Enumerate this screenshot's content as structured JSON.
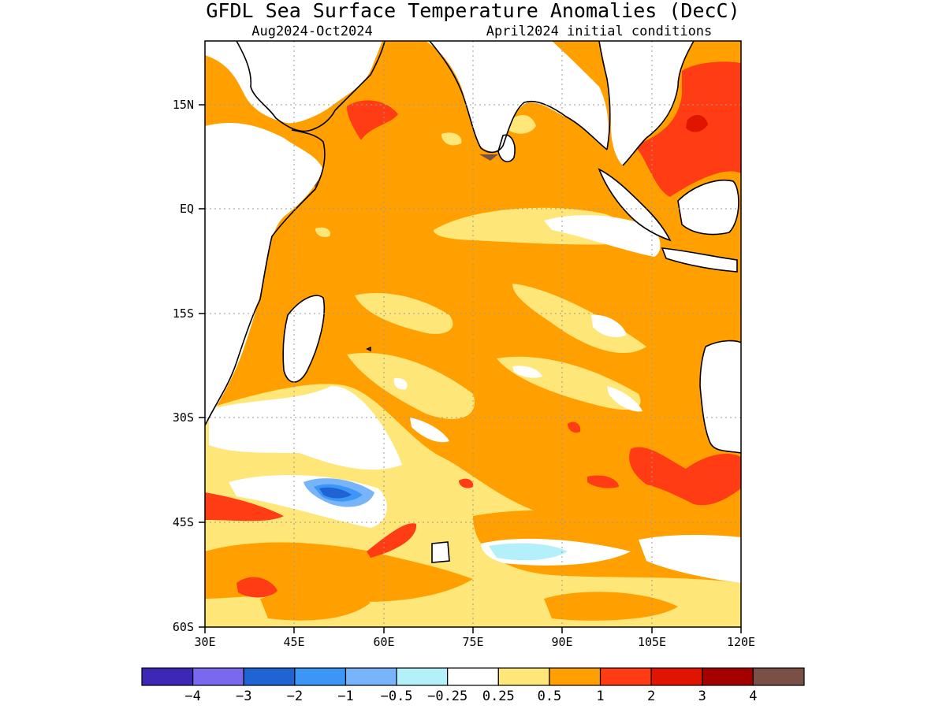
{
  "title": "GFDL Sea Surface Temperature Anomalies (DecC)",
  "period": "Aug2024-Oct2024",
  "init": "April2024 initial conditions",
  "lat_labels": [
    "15N",
    "EQ",
    "15S",
    "30S",
    "45S",
    "60S"
  ],
  "lon_labels": [
    "30E",
    "45E",
    "60E",
    "75E",
    "90E",
    "105E",
    "120E"
  ],
  "colorbar": {
    "colors": [
      "#3c28b4",
      "#7a69ee",
      "#1e64d2",
      "#3c96f5",
      "#78b4fa",
      "#b4f0fa",
      "#ffffff",
      "#ffe678",
      "#ffa000",
      "#ff3c14",
      "#e11400",
      "#a50000",
      "#7a5046"
    ],
    "labels": [
      "-4",
      "-3",
      "-2",
      "-1",
      "-0.5",
      "-0.25",
      "0.25",
      "0.5",
      "1",
      "2",
      "3",
      "4"
    ]
  },
  "palette": {
    "weak_warm": "#ffe678",
    "warm": "#ffa000",
    "hot": "#ff3c14",
    "hotter": "#e11400",
    "brown": "#7a5046",
    "cool": "#b4f0fa",
    "blue": "#3c96f5",
    "deep_blue": "#1e64d2"
  }
}
